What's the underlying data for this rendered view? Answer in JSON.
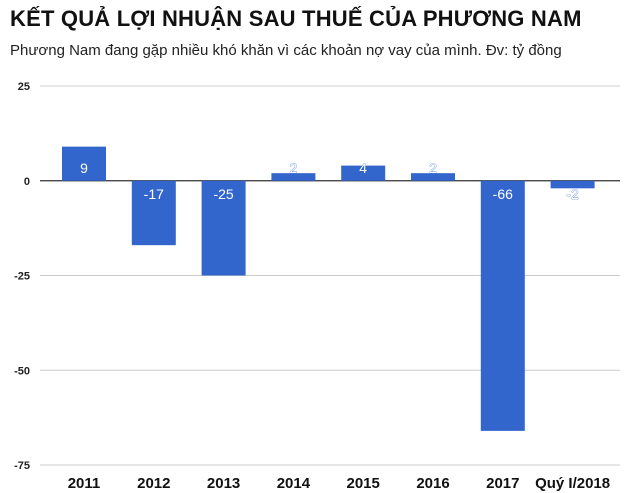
{
  "chart_data": {
    "type": "bar",
    "title": "KẾT QUẢ LỢI NHUẬN SAU THUẾ CỦA PHƯƠNG NAM",
    "subtitle": "Phương Nam đang gặp nhiều khó khăn vì các khoản nợ vay của mình. Đv: tỷ đồng",
    "categories": [
      "2011",
      "2012",
      "2013",
      "2014",
      "2015",
      "2016",
      "2017",
      "Quý I/2018"
    ],
    "values": [
      9,
      -17,
      -25,
      2,
      4,
      2,
      -66,
      -2
    ],
    "data_labels": [
      "9",
      "-17",
      "-25",
      "2",
      "4",
      "2",
      "-66",
      "-2"
    ],
    "yticks": [
      25,
      0,
      -25,
      -50,
      -75
    ],
    "ytick_labels": [
      "25",
      "0",
      "-25",
      "-50",
      "-75"
    ],
    "ylim": [
      -75,
      25
    ],
    "xlabel": "",
    "ylabel": "",
    "grid": true,
    "legend": "none",
    "bar_color": "#3366cc",
    "grid_color": "#cccccc",
    "axis_color": "#333333"
  }
}
